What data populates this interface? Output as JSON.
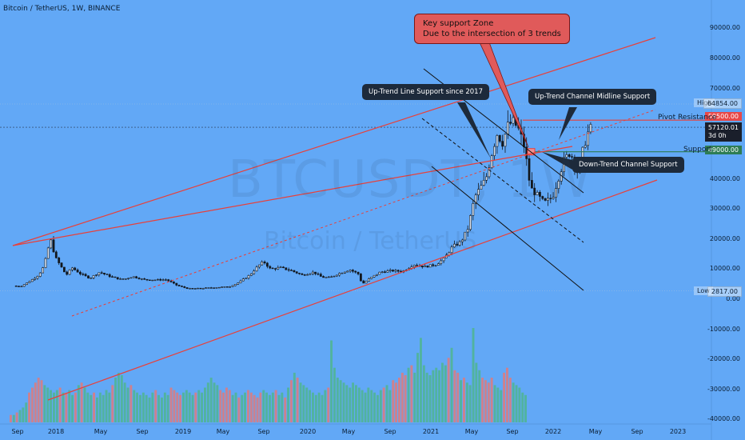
{
  "title": "Bitcoin / TetherUS, 1W, BINANCE",
  "watermark": {
    "symbol": "BTCUSDT, 1W",
    "name": "Bitcoin / TetherUS"
  },
  "chart_data": {
    "type": "candlestick",
    "instrument": "Bitcoin / TetherUS",
    "interval": "1W",
    "exchange": "BINANCE",
    "y_ticks": [
      "90000.00",
      "80000.00",
      "70000.00",
      "60000.00",
      "50000.00",
      "40000.00",
      "30000.00",
      "20000.00",
      "10000.00",
      "0.00",
      "-10000.00",
      "-20000.00",
      "-30000.00",
      "-40000.00"
    ],
    "x_ticks": [
      "Sep",
      "2018",
      "May",
      "Sep",
      "2019",
      "May",
      "Sep",
      "2020",
      "May",
      "Sep",
      "2021",
      "May",
      "Sep",
      "2022",
      "May",
      "Sep",
      "2023"
    ],
    "ylim": [
      -41000,
      96000
    ],
    "price_path": [
      [
        2017.7,
        4400
      ],
      [
        2017.75,
        4200
      ],
      [
        2017.8,
        5500
      ],
      [
        2017.85,
        7000
      ],
      [
        2017.88,
        8000
      ],
      [
        2017.92,
        11000
      ],
      [
        2017.95,
        17000
      ],
      [
        2017.97,
        19500
      ],
      [
        2018.0,
        14000
      ],
      [
        2018.04,
        11000
      ],
      [
        2018.08,
        8000
      ],
      [
        2018.12,
        10500
      ],
      [
        2018.18,
        8500
      ],
      [
        2018.25,
        7000
      ],
      [
        2018.32,
        9000
      ],
      [
        2018.4,
        7500
      ],
      [
        2018.48,
        6500
      ],
      [
        2018.56,
        7500
      ],
      [
        2018.64,
        6500
      ],
      [
        2018.72,
        6400
      ],
      [
        2018.8,
        6500
      ],
      [
        2018.88,
        4500
      ],
      [
        2018.96,
        3500
      ],
      [
        2019.05,
        3600
      ],
      [
        2019.15,
        3900
      ],
      [
        2019.25,
        4100
      ],
      [
        2019.32,
        5500
      ],
      [
        2019.4,
        8000
      ],
      [
        2019.46,
        11000
      ],
      [
        2019.5,
        12500
      ],
      [
        2019.55,
        10000
      ],
      [
        2019.62,
        10500
      ],
      [
        2019.7,
        9500
      ],
      [
        2019.78,
        8000
      ],
      [
        2019.86,
        9000
      ],
      [
        2019.92,
        7300
      ],
      [
        2019.98,
        7200
      ],
      [
        2020.04,
        8500
      ],
      [
        2020.12,
        9800
      ],
      [
        2020.18,
        8500
      ],
      [
        2020.21,
        5000
      ],
      [
        2020.26,
        6800
      ],
      [
        2020.34,
        9000
      ],
      [
        2020.42,
        9500
      ],
      [
        2020.5,
        9200
      ],
      [
        2020.58,
        11500
      ],
      [
        2020.66,
        10800
      ],
      [
        2020.74,
        11500
      ],
      [
        2020.8,
        13500
      ],
      [
        2020.86,
        17500
      ],
      [
        2020.92,
        19000
      ],
      [
        2020.97,
        23500
      ],
      [
        2021.02,
        34000
      ],
      [
        2021.06,
        37000
      ],
      [
        2021.1,
        40000
      ],
      [
        2021.14,
        48000
      ],
      [
        2021.18,
        55000
      ],
      [
        2021.22,
        52000
      ],
      [
        2021.26,
        58000
      ],
      [
        2021.3,
        59000
      ],
      [
        2021.34,
        56000
      ],
      [
        2021.38,
        50000
      ],
      [
        2021.42,
        37000
      ],
      [
        2021.46,
        35000
      ],
      [
        2021.52,
        32000
      ],
      [
        2021.58,
        34000
      ],
      [
        2021.62,
        40000
      ],
      [
        2021.66,
        46000
      ],
      [
        2021.7,
        48500
      ],
      [
        2021.73,
        47000
      ],
      [
        2021.76,
        42000
      ],
      [
        2021.79,
        48000
      ],
      [
        2021.83,
        55000
      ],
      [
        2021.86,
        57120
      ]
    ],
    "high": 64854.0,
    "low": 2817.0,
    "last_price": 57120.01,
    "countdown": "3d 0h",
    "pivot_resistance": 59500.0,
    "support": 49000.0,
    "volume_series_note": "weekly volume histogram (unlabeled scale)",
    "volume": [
      3,
      3,
      4,
      5,
      6,
      8,
      12,
      14,
      16,
      18,
      17,
      15,
      14,
      13,
      12,
      13,
      14,
      12,
      12,
      13,
      11,
      12,
      15,
      16,
      14,
      12,
      11,
      12,
      10,
      12,
      11,
      13,
      12,
      15,
      18,
      20,
      19,
      16,
      14,
      15,
      13,
      12,
      11,
      12,
      11,
      10,
      12,
      13,
      11,
      10,
      12,
      11,
      14,
      13,
      12,
      11,
      12,
      13,
      12,
      11,
      12,
      13,
      12,
      14,
      16,
      18,
      16,
      15,
      13,
      12,
      14,
      13,
      11,
      12,
      10,
      11,
      12,
      13,
      12,
      11,
      10,
      12,
      13,
      12,
      11,
      12,
      13,
      11,
      12,
      10,
      14,
      17,
      20,
      18,
      16,
      15,
      14,
      13,
      12,
      11,
      12,
      11,
      13,
      14,
      33,
      22,
      18,
      17,
      16,
      15,
      14,
      16,
      15,
      14,
      13,
      12,
      14,
      13,
      12,
      11,
      13,
      14,
      15,
      13,
      17,
      16,
      18,
      20,
      19,
      22,
      23,
      20,
      28,
      34,
      23,
      20,
      19,
      21,
      22,
      21,
      24,
      23,
      26,
      30,
      21,
      20,
      17,
      18,
      16,
      15,
      38,
      24,
      21,
      18,
      17,
      16,
      18,
      15,
      14,
      13,
      20,
      22,
      18,
      16,
      15,
      14,
      12,
      11
    ]
  },
  "axis_tags": {
    "high_label": "High",
    "high_value": "64854.00",
    "pivot_value": "59500.00",
    "price_value": "57120.01",
    "countdown": "3d 0h",
    "support_value": "49000.00",
    "low_label": "Low",
    "low_value": "2817.00"
  },
  "annotations": {
    "key_zone_line1": "Key support Zone",
    "key_zone_line2": "Due to the intersection of 3 trends",
    "uptrend_line": "Up-Trend Line Support since 2017",
    "channel_mid": "Up-Trend Channel Midline Support",
    "downtrend": "Down-Trend Channel Support",
    "pivot_label": "Pivot Resistance",
    "support_label": "Support"
  },
  "colors": {
    "background": "#62a8f6",
    "candles": "#12181f",
    "trend_lines": "#e8403a",
    "channel_lines": "#111111",
    "volume_up": "#4fb58f",
    "volume_down": "#e07a7a",
    "pivot": "#e8403a",
    "support": "#2e7d55",
    "callout_dark": "#1d2a3b",
    "callout_red": "#e05a5a"
  }
}
